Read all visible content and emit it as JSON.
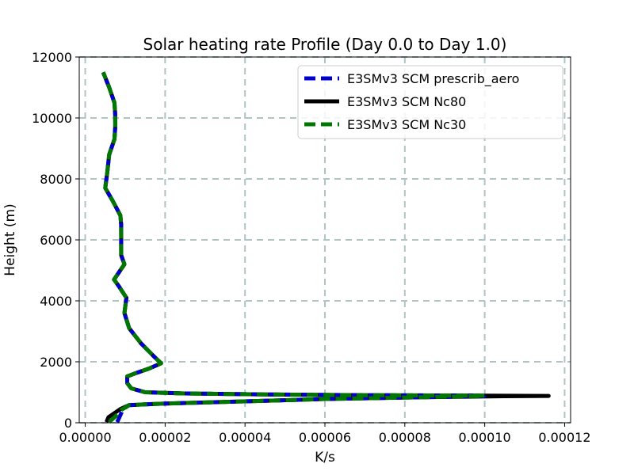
{
  "chart_data": {
    "type": "line",
    "title": "Solar heating rate Profile (Day 0.0 to Day 1.0)",
    "xlabel": "K/s",
    "ylabel": "Height (m)",
    "xlim": [
      -1.5e-06,
      0.0001215
    ],
    "ylim": [
      0,
      12000
    ],
    "xticks": [
      0,
      2e-05,
      4e-05,
      6e-05,
      8e-05,
      0.0001,
      0.00012
    ],
    "xtick_labels": [
      "0.00000",
      "0.00002",
      "0.00004",
      "0.00006",
      "0.00008",
      "0.00010",
      "0.00012"
    ],
    "yticks": [
      0,
      2000,
      4000,
      6000,
      8000,
      10000,
      12000
    ],
    "ytick_labels": [
      "0",
      "2000",
      "4000",
      "6000",
      "8000",
      "10000",
      "12000"
    ],
    "grid": true,
    "legend_position": "upper-right",
    "series": [
      {
        "name": "E3SMv3 SCM Nc80",
        "color": "#000000",
        "style": "solid",
        "x": [
          5.3e-06,
          5.8e-06,
          8.8e-06,
          1.1e-05,
          1.8e-05,
          2.8e-05,
          4.5e-05,
          6e-05,
          8.5e-05,
          0.000105,
          0.000116,
          0.0001,
          7e-05,
          4.5e-05,
          2.5e-05,
          1.5e-05,
          1.15e-05,
          1.05e-05,
          1.05e-05,
          1.25e-05,
          1.6e-05,
          1.9e-05,
          1.7e-05,
          1.4e-05,
          1.1e-05,
          9.8e-06,
          1.03e-05,
          8.3e-06,
          7.2e-06,
          9.8e-06,
          9e-06,
          9e-06,
          9e-06,
          9e-06,
          8.8e-06,
          8e-06,
          6.8e-06,
          5e-06,
          5.5e-06,
          6e-06,
          7.3e-06,
          7.5e-06,
          7.5e-06,
          7.3e-06,
          6e-06,
          4.5e-06
        ],
        "y": [
          20,
          180,
          450,
          580,
          620,
          660,
          720,
          780,
          840,
          870,
          880,
          890,
          905,
          930,
          960,
          1000,
          1130,
          1300,
          1520,
          1620,
          1780,
          1950,
          2200,
          2600,
          3100,
          3600,
          4100,
          4500,
          4700,
          5200,
          5500,
          5800,
          6200,
          6500,
          6800,
          7000,
          7300,
          7700,
          8200,
          8800,
          9300,
          9700,
          10100,
          10500,
          11000,
          11500
        ]
      },
      {
        "name": "E3SMv3 SCM prescrib_aero",
        "color": "#0000cc",
        "style": "dashed",
        "x": [
          8e-06,
          8.8e-06,
          9.5e-06,
          1.1e-05,
          1.8e-05,
          2.8e-05,
          4.5e-05,
          6e-05,
          8.5e-05,
          0.0001,
          0.0001,
          7e-05,
          4.5e-05,
          2.5e-05,
          1.5e-05,
          1.15e-05,
          1.05e-05,
          1.05e-05,
          1.25e-05,
          1.6e-05,
          1.9e-05,
          1.7e-05,
          1.4e-05,
          1.1e-05,
          9.8e-06,
          1.03e-05,
          8.3e-06,
          7.2e-06,
          9.8e-06,
          9e-06,
          9e-06,
          9e-06,
          9e-06,
          8.8e-06,
          8e-06,
          6.8e-06,
          5e-06,
          5.5e-06,
          6e-06,
          7.3e-06,
          7.5e-06,
          7.5e-06,
          7.3e-06,
          6e-06,
          4.5e-06
        ],
        "y": [
          20,
          250,
          450,
          580,
          620,
          660,
          720,
          780,
          840,
          880,
          890,
          905,
          930,
          960,
          1000,
          1130,
          1300,
          1520,
          1620,
          1780,
          1950,
          2200,
          2600,
          3100,
          3600,
          4100,
          4500,
          4700,
          5200,
          5500,
          5800,
          6200,
          6500,
          6800,
          7000,
          7300,
          7700,
          8200,
          8800,
          9300,
          9700,
          10100,
          10500,
          11000,
          11500
        ]
      },
      {
        "name": "E3SMv3 SCM Nc30",
        "color": "#007700",
        "style": "dashed",
        "x": [
          6e-06,
          7.5e-06,
          9e-06,
          1.1e-05,
          1.8e-05,
          2.8e-05,
          4.5e-05,
          6e-05,
          8.5e-05,
          0.0001,
          0.0001,
          7e-05,
          4.5e-05,
          2.5e-05,
          1.5e-05,
          1.15e-05,
          1.05e-05,
          1.05e-05,
          1.25e-05,
          1.6e-05,
          1.9e-05,
          1.7e-05,
          1.4e-05,
          1.1e-05,
          9.8e-06,
          1.03e-05,
          8.3e-06,
          7.2e-06,
          9.8e-06,
          9e-06,
          9e-06,
          9e-06,
          9e-06,
          8.8e-06,
          8e-06,
          6.8e-06,
          5e-06,
          5.5e-06,
          6e-06,
          7.3e-06,
          7.5e-06,
          7.5e-06,
          7.3e-06,
          6e-06,
          4.5e-06
        ],
        "y": [
          20,
          200,
          420,
          580,
          620,
          660,
          720,
          780,
          840,
          880,
          890,
          905,
          930,
          960,
          1000,
          1130,
          1300,
          1520,
          1620,
          1780,
          1950,
          2200,
          2600,
          3100,
          3600,
          4100,
          4500,
          4700,
          5200,
          5500,
          5800,
          6200,
          6500,
          6800,
          7000,
          7300,
          7700,
          8200,
          8800,
          9300,
          9700,
          10100,
          10500,
          11000,
          11500
        ]
      }
    ],
    "legend_order": [
      "E3SMv3 SCM prescrib_aero",
      "E3SMv3 SCM Nc80",
      "E3SMv3 SCM Nc30"
    ]
  }
}
